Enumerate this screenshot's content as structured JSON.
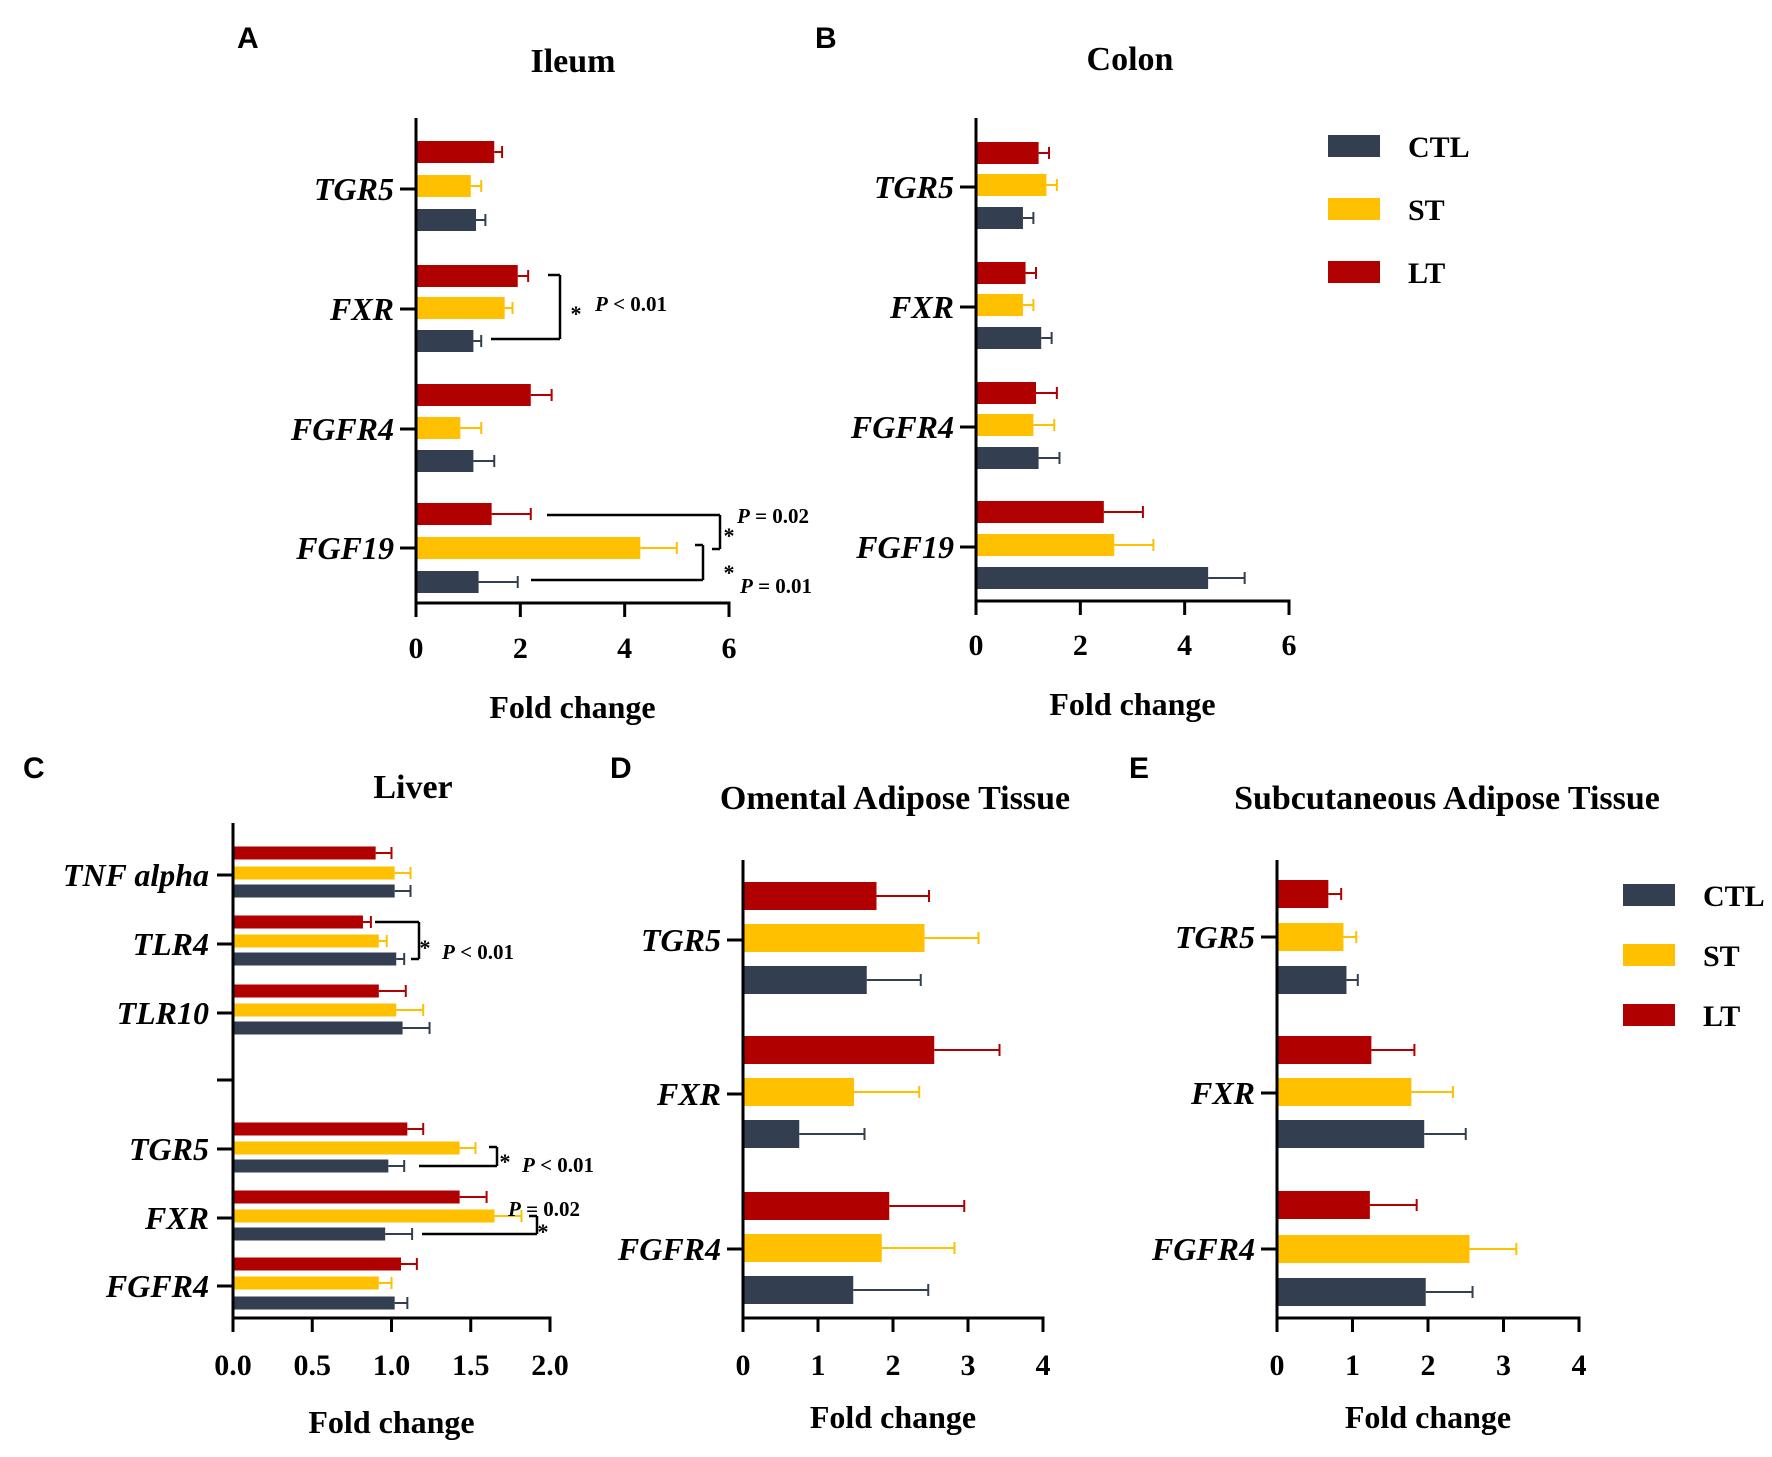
{
  "colors": {
    "CTL": "#333f50",
    "ST": "#ffc000",
    "LT": "#b00000"
  },
  "legend": [
    {
      "name": "CTL",
      "label": "CTL"
    },
    {
      "name": "ST",
      "label": "ST"
    },
    {
      "name": "LT",
      "label": "LT"
    }
  ],
  "chart_data": [
    {
      "id": "A",
      "panel_label": "A",
      "type": "bar",
      "orientation": "horizontal",
      "title": "Ileum",
      "xlabel": "Fold change",
      "xlim": [
        0,
        6
      ],
      "xticks": [
        "0",
        "2",
        "4",
        "6"
      ],
      "series_order": [
        "LT",
        "ST",
        "CTL"
      ],
      "categories": [
        {
          "label": "TGR5",
          "values": {
            "LT": 1.5,
            "ST": 1.05,
            "CTL": 1.15
          },
          "errors": {
            "LT": 0.15,
            "ST": 0.2,
            "CTL": 0.18
          }
        },
        {
          "label": "FXR",
          "values": {
            "LT": 1.95,
            "ST": 1.7,
            "CTL": 1.1
          },
          "errors": {
            "LT": 0.2,
            "ST": 0.15,
            "CTL": 0.15
          }
        },
        {
          "label": "FGFR4",
          "values": {
            "LT": 2.2,
            "ST": 0.85,
            "CTL": 1.1
          },
          "errors": {
            "LT": 0.4,
            "ST": 0.4,
            "CTL": 0.4
          }
        },
        {
          "label": "FGF19",
          "values": {
            "LT": 1.45,
            "ST": 4.3,
            "CTL": 1.2
          },
          "errors": {
            "LT": 0.75,
            "ST": 0.7,
            "CTL": 0.75
          }
        }
      ],
      "annotations": [
        {
          "star": "*",
          "text": "P < 0.01"
        },
        {
          "star": "*",
          "text": "P = 0.02"
        },
        {
          "star": "*",
          "text": "P = 0.01"
        }
      ]
    },
    {
      "id": "B",
      "panel_label": "B",
      "type": "bar",
      "orientation": "horizontal",
      "title": "Colon",
      "xlabel": "Fold change",
      "xlim": [
        0,
        6
      ],
      "xticks": [
        "0",
        "2",
        "4",
        "6"
      ],
      "series_order": [
        "LT",
        "ST",
        "CTL"
      ],
      "categories": [
        {
          "label": "TGR5",
          "values": {
            "LT": 1.2,
            "ST": 1.35,
            "CTL": 0.9
          },
          "errors": {
            "LT": 0.2,
            "ST": 0.2,
            "CTL": 0.2
          }
        },
        {
          "label": "FXR",
          "values": {
            "LT": 0.95,
            "ST": 0.9,
            "CTL": 1.25
          },
          "errors": {
            "LT": 0.2,
            "ST": 0.2,
            "CTL": 0.2
          }
        },
        {
          "label": "FGFR4",
          "values": {
            "LT": 1.15,
            "ST": 1.1,
            "CTL": 1.2
          },
          "errors": {
            "LT": 0.4,
            "ST": 0.4,
            "CTL": 0.4
          }
        },
        {
          "label": "FGF19",
          "values": {
            "LT": 2.45,
            "ST": 2.65,
            "CTL": 4.45
          },
          "errors": {
            "LT": 0.75,
            "ST": 0.75,
            "CTL": 0.7
          }
        }
      ],
      "annotations": []
    },
    {
      "id": "C",
      "panel_label": "C",
      "type": "bar",
      "orientation": "horizontal",
      "title": "Liver",
      "xlabel": "Fold change",
      "xlim": [
        0,
        2
      ],
      "xticks": [
        "0.0",
        "0.5",
        "1.0",
        "1.5",
        "2.0"
      ],
      "series_order": [
        "LT",
        "ST",
        "CTL"
      ],
      "categories": [
        {
          "label": "TNF alpha",
          "values": {
            "LT": 0.9,
            "ST": 1.02,
            "CTL": 1.02
          },
          "errors": {
            "LT": 0.1,
            "ST": 0.1,
            "CTL": 0.1
          }
        },
        {
          "label": "TLR4",
          "values": {
            "LT": 0.82,
            "ST": 0.92,
            "CTL": 1.03
          },
          "errors": {
            "LT": 0.05,
            "ST": 0.05,
            "CTL": 0.05
          }
        },
        {
          "label": "TLR10",
          "values": {
            "LT": 0.92,
            "ST": 1.03,
            "CTL": 1.07
          },
          "errors": {
            "LT": 0.17,
            "ST": 0.17,
            "CTL": 0.17
          }
        },
        {
          "label": "",
          "values": {},
          "errors": {}
        },
        {
          "label": "TGR5",
          "values": {
            "LT": 1.1,
            "ST": 1.43,
            "CTL": 0.98
          },
          "errors": {
            "LT": 0.1,
            "ST": 0.1,
            "CTL": 0.1
          }
        },
        {
          "label": "FXR",
          "values": {
            "LT": 1.43,
            "ST": 1.65,
            "CTL": 0.96
          },
          "errors": {
            "LT": 0.17,
            "ST": 0.17,
            "CTL": 0.17
          }
        },
        {
          "label": "FGFR4",
          "values": {
            "LT": 1.06,
            "ST": 0.92,
            "CTL": 1.02
          },
          "errors": {
            "LT": 0.1,
            "ST": 0.08,
            "CTL": 0.08
          }
        }
      ],
      "annotations": [
        {
          "star": "*",
          "text": "P < 0.01"
        },
        {
          "star": "*",
          "text": "P < 0.01"
        },
        {
          "star": "*",
          "text": "P = 0.02"
        }
      ]
    },
    {
      "id": "D",
      "panel_label": "D",
      "type": "bar",
      "orientation": "horizontal",
      "title": "Omental Adipose Tissue",
      "xlabel": "Fold change",
      "xlim": [
        0,
        4
      ],
      "xticks": [
        "0",
        "1",
        "2",
        "3",
        "4"
      ],
      "series_order": [
        "LT",
        "ST",
        "CTL"
      ],
      "categories": [
        {
          "label": "TGR5",
          "values": {
            "LT": 1.78,
            "ST": 2.42,
            "CTL": 1.65
          },
          "errors": {
            "LT": 0.7,
            "ST": 0.72,
            "CTL": 0.72
          }
        },
        {
          "label": "FXR",
          "values": {
            "LT": 2.55,
            "ST": 1.48,
            "CTL": 0.75
          },
          "errors": {
            "LT": 0.87,
            "ST": 0.87,
            "CTL": 0.87
          }
        },
        {
          "label": "FGFR4",
          "values": {
            "LT": 1.95,
            "ST": 1.85,
            "CTL": 1.47
          },
          "errors": {
            "LT": 1.0,
            "ST": 0.97,
            "CTL": 1.0
          }
        }
      ],
      "annotations": []
    },
    {
      "id": "E",
      "panel_label": "E",
      "type": "bar",
      "orientation": "horizontal",
      "title": "Subcutaneous Adipose Tissue",
      "xlabel": "Fold change",
      "xlim": [
        0,
        4
      ],
      "xticks": [
        "0",
        "1",
        "2",
        "3",
        "4"
      ],
      "series_order": [
        "LT",
        "ST",
        "CTL"
      ],
      "categories": [
        {
          "label": "TGR5",
          "values": {
            "LT": 0.68,
            "ST": 0.88,
            "CTL": 0.92
          },
          "errors": {
            "LT": 0.17,
            "ST": 0.17,
            "CTL": 0.15
          }
        },
        {
          "label": "FXR",
          "values": {
            "LT": 1.25,
            "ST": 1.78,
            "CTL": 1.95
          },
          "errors": {
            "LT": 0.57,
            "ST": 0.55,
            "CTL": 0.55
          }
        },
        {
          "label": "FGFR4",
          "values": {
            "LT": 1.23,
            "ST": 2.55,
            "CTL": 1.97
          },
          "errors": {
            "LT": 0.62,
            "ST": 0.62,
            "CTL": 0.62
          }
        }
      ],
      "annotations": []
    }
  ]
}
